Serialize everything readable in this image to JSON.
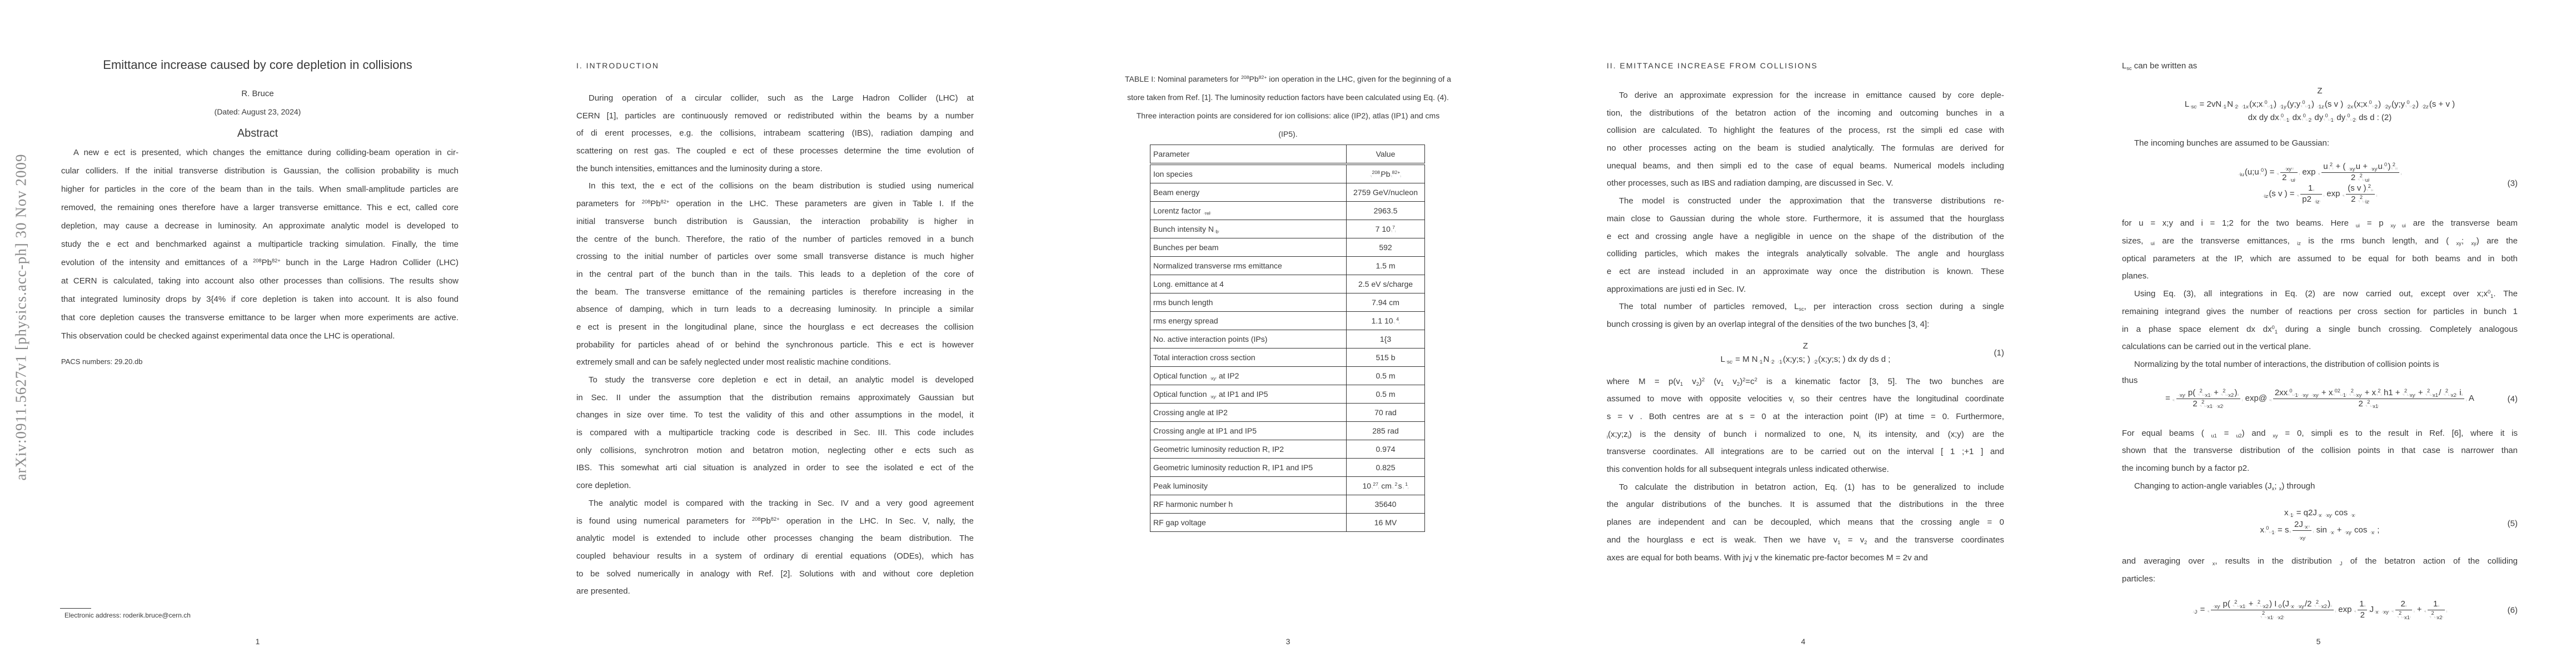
{
  "arxiv_stamp": "arXiv:0911.5627v1  [physics.acc-ph]  30 Nov 2009",
  "page1": {
    "title": "Emittance increase caused by core depletion in collisions",
    "author": "R. Bruce",
    "dated": "(Dated: August 23, 2024)",
    "abstract_heading": "Abstract",
    "abstract_lines": [
      "A new e ect is presented, which changes the emittance during colliding-beam operation in cir-",
      "cular colliders. If the initial transverse distribution is Gaussian, the collision probability is much",
      "higher for particles in the core of the beam than in the tails. When small-amplitude particles are",
      "removed, the remaining ones therefore have a larger transverse emittance. This e ect, called core",
      "depletion, may cause a decrease in luminosity. An approximate analytic model is developed to",
      "study the e ect and benchmarked against a multiparticle tracking simulation. Finally, the time",
      "evolution of the intensity and emittances of a ^{208}Pb^{82+} bunch in the Large Hadron Collider (LHC)",
      "at CERN is calculated, taking into account also other processes than collisions. The results show",
      "that integrated luminosity drops by 3{4% if core depletion is taken into account. It is also found",
      "that core depletion causes the transverse emittance to be larger when more experiments are active.",
      "This observation could be checked against experimental data once the LHC is operational."
    ],
    "pacs": "PACS numbers: 29.20.db",
    "footnote": "Electronic address: roderik.bruce@cern.ch",
    "page_number": "1"
  },
  "page2": {
    "heading": "I.  INTRODUCTION",
    "blocks": [
      {
        "type": "para",
        "lines": [
          "During operation of a circular collider, such as the Large Hadron Collider (LHC) at",
          "CERN [1], particles are continuously removed or redistributed within the beams by a number",
          "of di erent processes, e.g. the collisions, intrabeam scattering (IBS), radiation damping and",
          "scattering on rest gas. The coupled e ect of these processes determine the time evolution of",
          "the bunch intensities, emittances and the luminosity during a store."
        ]
      },
      {
        "type": "para",
        "lines": [
          "In this text, the e ect of the collisions on the beam distribution is studied using numerical",
          "parameters for ^{208}Pb^{82+} operation in the LHC. These parameters are given in Table I. If the",
          "initial transverse bunch distribution is Gaussian, the interaction probability is higher in",
          "the centre of the bunch. Therefore, the ratio of the number of particles removed in a bunch",
          "crossing to the initial number of particles over some small transverse distance is much higher",
          "in the central part of the bunch than in the tails. This leads to a depletion of the core of",
          "the beam. The transverse emittance of the remaining particles is therefore increasing in the",
          "absence of damping, which in turn leads to a decreasing luminosity. In principle a similar",
          "e ect is present in the longitudinal plane, since the hourglass e ect decreases the collision",
          "probability for particles ahead of or behind the synchronous particle. This e ect is however",
          "extremely small and can be safely neglected under most realistic machine conditions."
        ]
      },
      {
        "type": "para",
        "lines": [
          "To study the transverse core depletion e ect in detail, an analytic model is developed",
          "in Sec. II under the assumption that the distribution remains approximately Gaussian but",
          "changes in size over time. To test the validity of this and other assumptions in the model, it",
          "is compared with a multiparticle tracking code is described in Sec. III. This code includes",
          "only collisions, synchrotron motion and betatron motion, neglecting other e ects such as",
          "IBS. This somewhat arti cial situation is analyzed in order to see the isolated e ect of the",
          "core depletion."
        ]
      },
      {
        "type": "para",
        "lines": [
          "The analytic model is compared with the tracking in Sec. IV and a very good agreement",
          "is found using numerical parameters for ^{208}Pb^{82+} operation in the LHC. In Sec. V,  nally, the",
          "analytic model is extended to include other processes changing the beam distribution. The",
          "coupled behaviour results in a system of ordinary di erential equations (ODEs), which has",
          "to be solved numerically in analogy with Ref. [2]. Solutions with and without core depletion",
          "are presented."
        ]
      }
    ]
  },
  "page3": {
    "caption_lines": [
      "TABLE I: Nominal parameters for ^{208}Pb^{82+} ion operation in the LHC, given for the beginning of a",
      "store taken from Ref. [1]. The luminosity reduction factors have been calculated using Eq. (4).",
      "Three interaction points are considered for ion collisions: alice (IP2), atlas (IP1) and cms",
      "(IP5)."
    ],
    "table": {
      "header": [
        "Parameter",
        "Value"
      ],
      "rows": [
        [
          "Ion species",
          "^{208}Pb^{82+}"
        ],
        [
          "Beam energy",
          "2759 GeV/nucleon"
        ],
        [
          "Lorentz factor  _{rel}",
          "2963.5"
        ],
        [
          "Bunch intensity N_{b}",
          "7   10^{7}"
        ],
        [
          "Bunches per beam",
          "592"
        ],
        [
          "Normalized transverse rms emittance",
          "1.5   m"
        ],
        [
          "Long. emittance at 4 ",
          "2.5 eV s/charge"
        ],
        [
          "rms bunch length",
          "7.94 cm"
        ],
        [
          "rms energy spread",
          "1.1   10^{ 4}"
        ],
        [
          "No. active interaction points (IPs)",
          "1{3"
        ],
        [
          "Total interaction cross section",
          "515 b"
        ],
        [
          "Optical function  _{xy} at IP2",
          "0.5 m"
        ],
        [
          "Optical function  _{xy} at IP1 and IP5",
          "0.5 m"
        ],
        [
          "Crossing angle at IP2",
          "70   rad"
        ],
        [
          "Crossing angle at IP1 and IP5",
          "285   rad"
        ],
        [
          "Geometric luminosity reduction R, IP2",
          "0.974"
        ],
        [
          "Geometric luminosity reduction R, IP1 and IP5",
          "0.825"
        ],
        [
          "Peak luminosity",
          "10^{27} cm^{ 2}s^{ 1}"
        ],
        [
          "RF harmonic number h",
          "35640"
        ],
        [
          "RF gap voltage",
          "16 MV"
        ]
      ]
    },
    "page_number": "3"
  },
  "page4": {
    "heading": "II.  EMITTANCE INCREASE FROM COLLISIONS",
    "blocks": [
      {
        "type": "para",
        "lines": [
          "To derive an approximate expression for the increase in emittance caused by core deple-",
          "tion, the distributions of the betatron action of the incoming and outcoming bunches in a",
          "collision are calculated. To highlight the features of the process,  rst the simpli ed case with",
          "no other processes acting on the beam is studied analytically. The formulas are derived for",
          "unequal beams, and then simpli ed to the case of equal beams. Numerical models including",
          "other processes, such as IBS and radiation damping, are discussed in Sec. V."
        ]
      },
      {
        "type": "para",
        "lines": [
          "The model is constructed under the approximation that the transverse distributions re-",
          "main close to Gaussian during the whole store. Furthermore, it is assumed that the hourglass",
          "e ect and crossing angle have a negligible in uence on the shape of the distribution of the",
          "colliding particles, which makes the integrals analytically solvable. The angle and hourglass",
          "e ect are instead included in an approximate way once the distribution is known. These",
          "approximations are justi ed in Sec. IV."
        ]
      },
      {
        "type": "para",
        "lines": [
          "The total number of particles removed, L_{sc}, per interaction cross section   during a single",
          "bunch crossing is given by an overlap integral of the densities of the two bunches [3, 4]:"
        ]
      },
      {
        "type": "eq",
        "n": "1",
        "num": "(1)",
        "rows": [
          "Z",
          "L_{sc} = M N_{1}N_{2}     _{1}(x;y;s; )  _{2}(x;y;s; ) dx dy ds d  ;"
        ]
      },
      {
        "type": "cont",
        "lines": [
          "where M = p(v_{1}   v_{2})^{2}   (v_{1}   v_{2})^{2}=c^{2} is a kinematic factor [3, 5]. The two bunches are",
          "assumed to move with opposite velocities v_{i} so their centres have the longitudinal coordinate",
          "s =   v . Both centres are at s = 0 at the interaction point (IP) at time   = 0. Furthermore,",
          " _{i}(x;y;z_{i}) is the density of bunch i normalized to one, N_{i} its intensity, and (x;y) are the",
          "transverse coordinates. All integrations are to be carried out on the interval [ 1 ;+1 ] and",
          "this convention holds for all subsequent integrals unless indicated otherwise."
        ]
      },
      {
        "type": "para",
        "lines": [
          "To calculate the distribution in betatron action, Eq. (1) has to be generalized to include",
          "the angular distributions of the bunches. It is assumed that the distributions in the three",
          "planes are independent and can be decoupled, which means that the crossing angle   = 0",
          "and the hourglass e ect is weak. Then we have v_{1} =   v_{2} and the transverse coordinates",
          "axes are equal for both beams. With jv_{i}j   v the kinematic pre-factor becomes M = 2v and"
        ]
      }
    ],
    "page_number": "4"
  },
  "page5": {
    "blocks": [
      {
        "type": "cont",
        "lines": [
          "L_{sc} can be written as"
        ]
      },
      {
        "type": "eq",
        "n": "2",
        "num": "",
        "rows": [
          "Z",
          "L_{sc} = 2vN_{1}N_{2}     _{1x}(x;x^{0}_{1})  _{1y}(y;y^{0}_{1})  _{1z}(s   v )     _{2x}(x;x^{0}_{2})  _{2y}(y;y^{0}_{2})  _{2z}(s + v )",
          "                                        dx dy dx^{0}_{1} dx^{0}_{2} dy^{0}_{1} dy^{0}_{2} ds d   :  (2)"
        ]
      },
      {
        "type": "para",
        "lines": [
          "The incoming bunches are assumed to be Gaussian:"
        ]
      },
      {
        "type": "eq",
        "n": "3",
        "num": "(3)",
        "rows": [
          " _{iu}(u;u^{0}) = \\f{ _{xy}}{2  _{ui}} exp   \\f{u^{2} + ( _{xy}u +  _{xy}u^{0})^{2}}{2 ^{2}_{ui}}",
          " _{iz}(s   v ) = \\f{1}{p2  _{iz}} exp   \\f{(s   v )^{2}}{2 ^{2}_{iz}}"
        ]
      },
      {
        "type": "cont",
        "lines": [
          "for u = x;y and i = 1;2 for the two beams. Here  _{ui} = p _{xy ui} are the transverse beam",
          "sizes,  _{ui} are the transverse emittances,  _{iz} is the rms bunch length, and ( _{xy}; _{xy}) are the",
          "optical parameters at the IP, which are assumed to be equal for both beams and in both",
          "planes."
        ]
      },
      {
        "type": "para",
        "lines": [
          "Using Eq. (3), all integrations in Eq. (2) are now carried out, except over x;x^{0}_{1}. The",
          "remaining integrand   gives the number of reactions per cross section for particles in bunch 1",
          "in a phase space element dx dx^{0}_{1} during a single bunch crossing. Completely analogous",
          "calculations can be carried out in the vertical plane."
        ]
      },
      {
        "type": "para",
        "lines": [
          "Normalizing by the total number of interactions, the distribution of collision points is"
        ]
      },
      {
        "type": "eq",
        "n": "4",
        "num": "(4)",
        "lead": "thus",
        "rows": [
          " = \\f{ _{xy} p( ^{2}_{x1} +  ^{2}_{x2})}{2  ^{2}_{x1} _{x2}} exp@  \\f{2xx^{0}_{1} _{xy} _{xy} + x^{02}_{1} ^{2}_{xy} + x^{2} h1 +  ^{2}_{xy} + ^{2}_{x1}/ ^{2}_{x2} i}{2 ^{2}_{x1}} A"
        ]
      },
      {
        "type": "cont",
        "lines": [
          "For equal beams ( _{u1} =  _{u2}) and  _{xy} = 0,   simpli es to the result in Ref. [6], where it is",
          "shown that the transverse distribution of the collision points in that case is narrower than",
          "the incoming bunch by a factor p2."
        ]
      },
      {
        "type": "para",
        "lines": [
          "Changing to action-angle variables (J_{x}; _{x}) through"
        ]
      },
      {
        "type": "eq",
        "n": "5",
        "num": "(5)",
        "rows": [
          "x_{1} =   q2J_{x} _{xy} cos  _{x}",
          "x^{0}_{1} =   s\\f{2J_{x}}{ _{xy}} sin  _{x} +  _{xy} cos  _{x} ;"
        ]
      },
      {
        "type": "cont",
        "lines": [
          "and averaging over  _{x}, results in the distribution  _{J} of the betatron action of the colliding",
          "particles:"
        ]
      },
      {
        "type": "eq",
        "n": "6",
        "num": "(6)",
        "rows": [
          " _{J} = \\f{ _{xy} p( ^{2}_{x1} +  ^{2}_{x2}) I_{0}(J_{x} _{xy}/2 ^{2}_{x2})}{ ^{2}_{x1} _{x2}} exp   \\f{1}{2}J_{x} _{xy} \\f{2}{ ^{2}_{x1}} + \\f{1}{ ^{2}_{x2}}"
        ]
      }
    ],
    "page_number": "5"
  }
}
